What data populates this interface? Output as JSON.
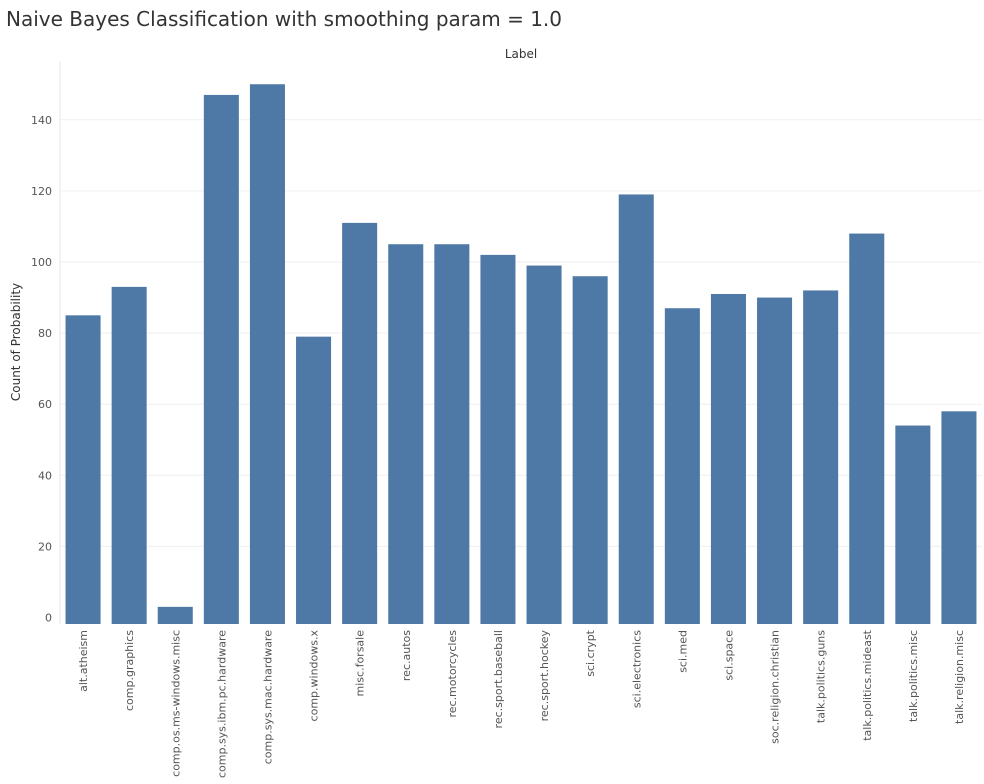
{
  "chart_data": {
    "type": "bar",
    "title": "Naive Bayes Classification with smoothing param = 1.0",
    "column_header": "Label",
    "ylabel": "Count of Probability",
    "xlabel": "",
    "ylim": [
      0,
      155
    ],
    "yticks": [
      0,
      20,
      40,
      60,
      80,
      100,
      120,
      140
    ],
    "grid": true,
    "bar_color": "#4e79a7",
    "categories": [
      "alt.atheism",
      "comp.graphics",
      "comp.os.ms-windows.misc",
      "comp.sys.ibm.pc.hardware",
      "comp.sys.mac.hardware",
      "comp.windows.x",
      "misc.forsale",
      "rec.autos",
      "rec.motorcycles",
      "rec.sport.baseball",
      "rec.sport.hockey",
      "sci.crypt",
      "sci.electronics",
      "sci.med",
      "sci.space",
      "soc.religion.christian",
      "talk.politics.guns",
      "talk.politics.mideast",
      "talk.politics.misc",
      "talk.religion.misc"
    ],
    "values": [
      85,
      93,
      3,
      147,
      150,
      79,
      111,
      105,
      105,
      102,
      99,
      96,
      119,
      87,
      91,
      90,
      92,
      108,
      54,
      58
    ]
  }
}
